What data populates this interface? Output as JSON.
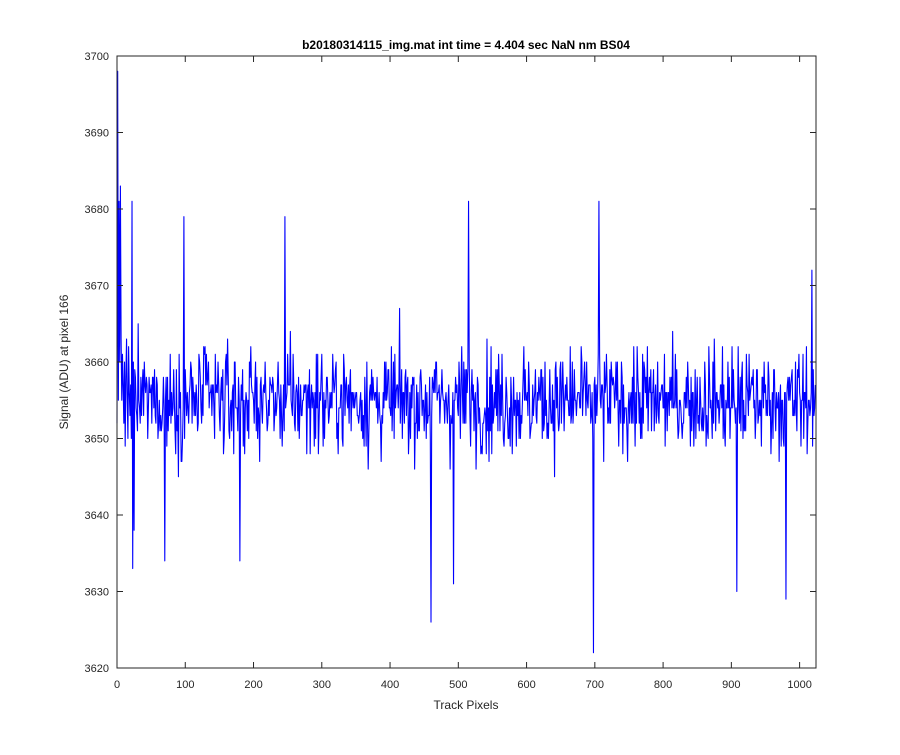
{
  "chart_data": {
    "type": "line",
    "title": "b20180314115_img.mat int time = 4.404 sec  NaN nm BS04",
    "xlabel": "Track Pixels",
    "ylabel": "Signal (ADU) at pixel 166",
    "xlim": [
      0,
      1024
    ],
    "ylim": [
      3620,
      3700
    ],
    "xticks": [
      0,
      100,
      200,
      300,
      400,
      500,
      600,
      700,
      800,
      900,
      1000
    ],
    "yticks": [
      3620,
      3630,
      3640,
      3650,
      3660,
      3670,
      3680,
      3690,
      3700
    ],
    "grid": false,
    "legend": "none",
    "series": [
      {
        "color": "#0000ff",
        "y_start_samples": [
          3652,
          3698,
          3655,
          3683,
          3660,
          3648,
          3663,
          3655,
          3661,
          3657,
          3652,
          3660,
          3649,
          3658,
          3663,
          3655,
          3650,
          3662,
          3656,
          3653,
          3657,
          3650,
          3681,
          3633,
          3660,
          3638,
          3659
        ],
        "spikes": [
          {
            "x": 1,
            "y": 3698
          },
          {
            "x": 5,
            "y": 3683
          },
          {
            "x": 22,
            "y": 3681
          },
          {
            "x": 23,
            "y": 3633
          },
          {
            "x": 70,
            "y": 3634
          },
          {
            "x": 98,
            "y": 3679
          },
          {
            "x": 180,
            "y": 3634
          },
          {
            "x": 246,
            "y": 3679
          },
          {
            "x": 460,
            "y": 3626
          },
          {
            "x": 515,
            "y": 3681
          },
          {
            "x": 493,
            "y": 3631
          },
          {
            "x": 698,
            "y": 3622
          },
          {
            "x": 706,
            "y": 3681
          },
          {
            "x": 908,
            "y": 3630
          },
          {
            "x": 980,
            "y": 3629
          },
          {
            "x": 1018,
            "y": 3672
          }
        ],
        "typical_low": 3642,
        "typical_high": 3668,
        "mean": 3655,
        "n_points": 1024
      }
    ]
  }
}
